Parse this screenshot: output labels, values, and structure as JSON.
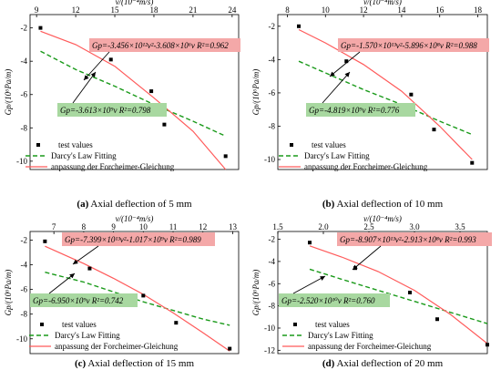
{
  "colors": {
    "fit_red": "#ff5a5a",
    "fit_green": "#1a9a1a",
    "points": "#000000",
    "red_box": "#f4a8a8",
    "green_box": "#a8d8a0",
    "axis": "#000000"
  },
  "legend_entries": [
    "test values",
    "Darcy's Law Fitting",
    "anpassung der Forcheimer-Gleichung"
  ],
  "chart_data": [
    {
      "type": "scatter",
      "caption_letter": "(a)",
      "caption_text": " Axial deflection of 5 mm",
      "xlabel": "v/(10⁻⁴m/s)",
      "ylabel": "Gp/(10⁶Pa/m)",
      "xlim": [
        8.5,
        24.5
      ],
      "ylim": [
        -10.5,
        -1.2
      ],
      "xticks": [
        9,
        12,
        15,
        18,
        21,
        24
      ],
      "xtick_labels": [
        "9",
        "12",
        "15",
        "18",
        "21",
        "24"
      ],
      "yticks": [
        -2,
        -4,
        -6,
        -8,
        -10
      ],
      "ytick_labels": [
        "-2",
        "-4",
        "-6",
        "-8",
        "-10"
      ],
      "points": [
        [
          9.3,
          -2.0
        ],
        [
          14.7,
          -3.9
        ],
        [
          17.8,
          -5.8
        ],
        [
          18.8,
          -7.8
        ],
        [
          23.5,
          -9.7
        ]
      ],
      "forchheimer_fit": [
        [
          9.3,
          -2.2
        ],
        [
          12,
          -3.0
        ],
        [
          15,
          -4.3
        ],
        [
          18,
          -6.2
        ],
        [
          21,
          -8.2
        ],
        [
          23.5,
          -10.5
        ]
      ],
      "darcy_fit": [
        [
          9.3,
          -3.4
        ],
        [
          12,
          -4.5
        ],
        [
          15,
          -5.5
        ],
        [
          18,
          -6.6
        ],
        [
          21,
          -7.6
        ],
        [
          23.5,
          -8.5
        ]
      ],
      "forchheimer_eq": "Gp=-3.456×10¹²v²-3.608×10⁶v R²=0.962",
      "darcy_eq": "Gp=-3.613×10⁹v R²=0.798"
    },
    {
      "type": "scatter",
      "caption_letter": "(b)",
      "caption_text": " Axial deflection of 10 mm",
      "xlabel": "v/(10⁻⁴m/s)",
      "ylabel": "Gp/(10⁶Pa/m)",
      "xlim": [
        7.5,
        18.5
      ],
      "ylim": [
        -10.6,
        -1.3
      ],
      "xticks": [
        8,
        10,
        12,
        14,
        16,
        18
      ],
      "xtick_labels": [
        "8",
        "10",
        "12",
        "14",
        "16",
        "18"
      ],
      "yticks": [
        -2,
        -4,
        -6,
        -8,
        -10
      ],
      "ytick_labels": [
        "-2",
        "-4",
        "-6",
        "-8",
        "-10"
      ],
      "points": [
        [
          8.6,
          -2.0
        ],
        [
          11.1,
          -4.1
        ],
        [
          14.5,
          -6.1
        ],
        [
          15.7,
          -8.2
        ],
        [
          17.7,
          -10.2
        ]
      ],
      "forchheimer_fit": [
        [
          8.6,
          -2.2
        ],
        [
          10,
          -3.0
        ],
        [
          12,
          -4.3
        ],
        [
          14,
          -5.9
        ],
        [
          16,
          -8.0
        ],
        [
          17.7,
          -10.0
        ]
      ],
      "darcy_fit": [
        [
          8.6,
          -4.1
        ],
        [
          10,
          -4.8
        ],
        [
          12,
          -5.8
        ],
        [
          14,
          -6.7
        ],
        [
          16,
          -7.7
        ],
        [
          17.7,
          -8.5
        ]
      ],
      "forchheimer_eq": "Gp=-1.570×10¹³v²-5.896×10⁸v R²=0.988",
      "darcy_eq": "Gp=-4.819×10⁹v R²=0.776"
    },
    {
      "type": "scatter",
      "caption_letter": "(c)",
      "caption_text": " Axial deflection of 15 mm",
      "xlabel": "v/(10⁻⁴m/s)",
      "ylabel": "Gp/(10⁶Pa/m)",
      "xlim": [
        6.2,
        13.2
      ],
      "ylim": [
        -11.2,
        -1.3
      ],
      "xticks": [
        7,
        8,
        9,
        10,
        11,
        12,
        13
      ],
      "xtick_labels": [
        "7",
        "8",
        "9",
        "10",
        "11",
        "12",
        "13"
      ],
      "yticks": [
        -2,
        -4,
        -6,
        -8,
        -10
      ],
      "ytick_labels": [
        "-2",
        "-4",
        "-6",
        "-8",
        "-10"
      ],
      "points": [
        [
          6.7,
          -2.1
        ],
        [
          8.2,
          -4.3
        ],
        [
          10.0,
          -6.5
        ],
        [
          11.1,
          -8.7
        ],
        [
          12.9,
          -10.8
        ]
      ],
      "forchheimer_fit": [
        [
          6.7,
          -2.5
        ],
        [
          8,
          -3.9
        ],
        [
          9,
          -5.1
        ],
        [
          10,
          -6.4
        ],
        [
          11,
          -7.9
        ],
        [
          12,
          -9.5
        ],
        [
          12.9,
          -11.0
        ]
      ],
      "darcy_fit": [
        [
          6.7,
          -4.6
        ],
        [
          8,
          -5.4
        ],
        [
          9,
          -6.2
        ],
        [
          10,
          -7.0
        ],
        [
          11,
          -7.7
        ],
        [
          12,
          -8.4
        ],
        [
          12.9,
          -8.9
        ]
      ],
      "forchheimer_eq": "Gp=-7.399×10¹³v²-1.017×10⁹v R²=0.989",
      "darcy_eq": "Gp=-6.950×10⁹v R²=0.742"
    },
    {
      "type": "scatter",
      "caption_letter": "(d)",
      "caption_text": " Axial deflection of 20 mm",
      "xlabel": "v/(10⁻⁴m/s)",
      "ylabel": "Gp/(10⁶Pa/m)",
      "xlim": [
        1.5,
        3.8
      ],
      "ylim": [
        -12.3,
        -1.3
      ],
      "xticks": [
        1.5,
        2.0,
        2.5,
        3.0,
        3.5
      ],
      "xtick_labels": [
        "1.5",
        "2.0",
        "2.5",
        "3.0",
        "3.5"
      ],
      "yticks": [
        -2,
        -4,
        -6,
        -8,
        -10,
        -12
      ],
      "ytick_labels": [
        "-2",
        "-4",
        "-6",
        "-8",
        "-10",
        "-12"
      ],
      "points": [
        [
          1.85,
          -2.3
        ],
        [
          2.35,
          -4.6
        ],
        [
          2.95,
          -6.8
        ],
        [
          3.25,
          -9.2
        ],
        [
          3.8,
          -11.5
        ]
      ],
      "forchheimer_fit": [
        [
          1.85,
          -2.6
        ],
        [
          2.2,
          -3.6
        ],
        [
          2.6,
          -4.9
        ],
        [
          3.0,
          -6.6
        ],
        [
          3.4,
          -8.8
        ],
        [
          3.8,
          -11.4
        ]
      ],
      "darcy_fit": [
        [
          1.85,
          -4.7
        ],
        [
          2.2,
          -5.6
        ],
        [
          2.6,
          -6.6
        ],
        [
          3.0,
          -7.6
        ],
        [
          3.4,
          -8.6
        ],
        [
          3.8,
          -9.6
        ]
      ],
      "forchheimer_eq": "Gp=-8.907×10¹³v²-2.913×10⁸v R²=0.993",
      "darcy_eq": "Gp=-2.520×10¹⁰v R²=0.760"
    }
  ]
}
